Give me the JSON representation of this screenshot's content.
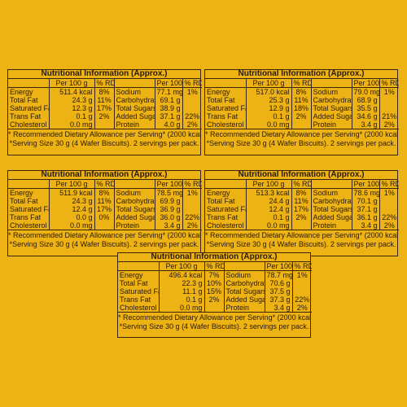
{
  "common": {
    "title": "Nutritional Information (Approx.)",
    "per100": "Per 100 g",
    "rda": "% RDA*",
    "labels_left": [
      "Energy",
      "Total Fat",
      "Saturated Fat",
      "Trans Fat",
      "Cholesterol"
    ],
    "labels_right": [
      "Sodium",
      "Carbohydrate",
      "Total Sugars",
      "Added Sugars",
      "Protein"
    ],
    "foot1": "* Recommended Dietary Allowance per Serving* (2000 kcal diet).",
    "foot2": "*Serving Size 30 g (4 Wafer Biscuits). 2 servings per pack."
  },
  "panels": [
    {
      "left_vals": [
        "511.4 kcal",
        "24.3 g",
        "12.3 g",
        "0.1 g",
        "0.0 mg"
      ],
      "left_rda": [
        "8%",
        "11%",
        "17%",
        "2%",
        ""
      ],
      "right_vals": [
        "77.1 mg",
        "69.1 g",
        "38.9 g",
        "37.1 g",
        "4.0 g"
      ],
      "right_rda": [
        "1%",
        "",
        "",
        "22%",
        "2%"
      ]
    },
    {
      "left_vals": [
        "517.0 kcal",
        "25.3 g",
        "12.9 g",
        "0.1 g",
        "0.0 mg"
      ],
      "left_rda": [
        "8%",
        "11%",
        "18%",
        "2%",
        ""
      ],
      "right_vals": [
        "79.0 mg",
        "68.9 g",
        "35.5 g",
        "34.6 g",
        "3.4 g"
      ],
      "right_rda": [
        "1%",
        "",
        "",
        "21%",
        "2%"
      ]
    },
    {
      "left_vals": [
        "511.9 kcal",
        "24.3 g",
        "12.4 g",
        "0.0 g",
        "0.0 mg"
      ],
      "left_rda": [
        "8%",
        "11%",
        "17%",
        "0%",
        ""
      ],
      "right_vals": [
        "78.5 mg",
        "69.9 g",
        "36.9 g",
        "36.0 g",
        "3.4 g"
      ],
      "right_rda": [
        "1%",
        "",
        "",
        "22%",
        "2%"
      ]
    },
    {
      "left_vals": [
        "513.3 kcal",
        "24.4 g",
        "12.4 g",
        "0.1 g",
        "0.0 mg"
      ],
      "left_rda": [
        "8%",
        "11%",
        "17%",
        "2%",
        ""
      ],
      "right_vals": [
        "78.6 mg",
        "70.1 g",
        "37.1 g",
        "36.1 g",
        "3.4 g"
      ],
      "right_rda": [
        "1%",
        "",
        "",
        "22%",
        "2%"
      ]
    },
    {
      "left_vals": [
        "496.4 kcal",
        "22.3 g",
        "11.1 g",
        "0.1 g",
        "0.0 mg"
      ],
      "left_rda": [
        "7%",
        "10%",
        "15%",
        "2%",
        ""
      ],
      "right_vals": [
        "78.7 mg",
        "70.6 g",
        "37.5 g",
        "37.3 g",
        "3.4 g"
      ],
      "right_rda": [
        "1%",
        "",
        "",
        "22%",
        "2%"
      ]
    }
  ]
}
